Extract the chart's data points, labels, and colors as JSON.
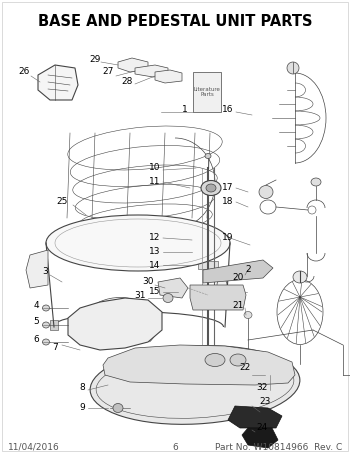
{
  "title": "BASE AND PEDESTAL UNIT PARTS",
  "title_fontsize": 10.5,
  "title_fontweight": "bold",
  "footer_left": "11/04/2016",
  "footer_center": "6",
  "footer_right": "Part No. W10814966  Rev. C",
  "footer_fontsize": 6.5,
  "bg_color": "#ffffff",
  "line_color": "#444444",
  "text_color": "#000000",
  "label_fontsize": 6.5,
  "fig_width": 3.5,
  "fig_height": 4.53,
  "dpi": 100
}
